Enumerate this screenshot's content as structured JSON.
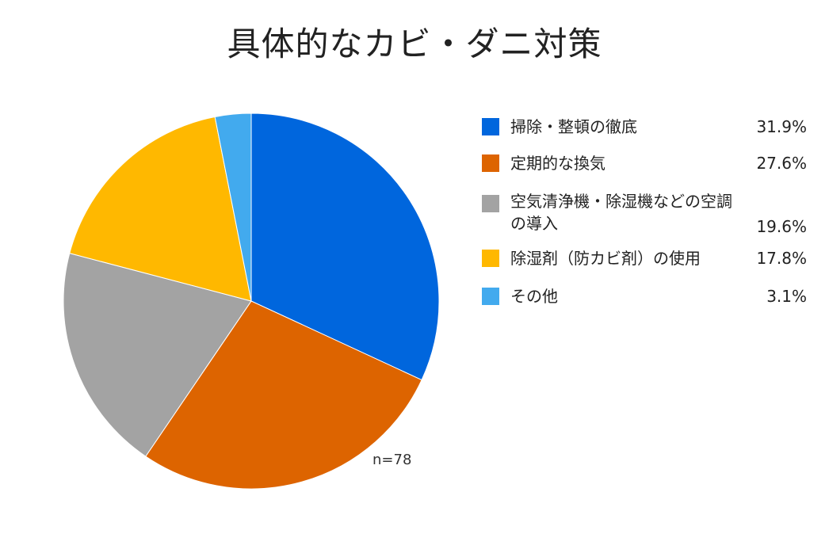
{
  "chart_data": {
    "type": "pie",
    "title": "具体的なカビ・ダニ対策",
    "note": "n=78",
    "categories": [
      "掃除・整頓の徹底",
      "定期的な換気",
      "空気清浄機・除湿機などの空調の導入",
      "除湿剤（防カビ剤）の使用",
      "その他"
    ],
    "values": [
      31.9,
      27.6,
      19.6,
      17.8,
      3.1
    ],
    "value_labels": [
      "31.9%",
      "27.6%",
      "19.6%",
      "17.8%",
      "3.1%"
    ],
    "colors": [
      "#0066dd",
      "#dd6400",
      "#a3a3a3",
      "#ffb800",
      "#42aaee"
    ],
    "start_angle": "12 o'clock",
    "direction": "clockwise",
    "legend_placement": "right"
  }
}
